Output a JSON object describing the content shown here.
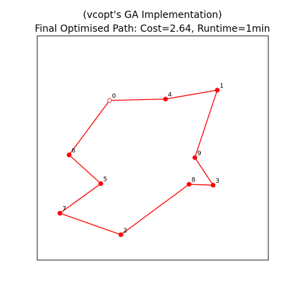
{
  "chart_data": {
    "type": "scatter",
    "title_line1": "(vcopt's GA Implementation)",
    "title_line2": "Final Optimised Path: Cost=2.64, Runtime=1min",
    "xlabel": "",
    "ylabel": "",
    "xlim": [
      0,
      1
    ],
    "ylim": [
      0,
      1
    ],
    "grid": false,
    "show_ticks": false,
    "colors": {
      "path": "#ff0000",
      "point": "#ff0000",
      "start_fill": "#ffffff",
      "frame": "#000000"
    },
    "points": [
      {
        "label": "0",
        "x": 0.313,
        "y": 0.712
      },
      {
        "label": "1",
        "x": 0.779,
        "y": 0.758
      },
      {
        "label": "2",
        "x": 0.362,
        "y": 0.113
      },
      {
        "label": "3",
        "x": 0.761,
        "y": 0.334
      },
      {
        "label": "4",
        "x": 0.555,
        "y": 0.718
      },
      {
        "label": "5",
        "x": 0.275,
        "y": 0.341
      },
      {
        "label": "6",
        "x": 0.138,
        "y": 0.469
      },
      {
        "label": "7",
        "x": 0.098,
        "y": 0.209
      },
      {
        "label": "8",
        "x": 0.657,
        "y": 0.338
      },
      {
        "label": "9",
        "x": 0.682,
        "y": 0.457
      }
    ],
    "path_order": [
      "0",
      "4",
      "1",
      "9",
      "3",
      "8",
      "2",
      "7",
      "5",
      "6",
      "0"
    ],
    "start_point": "0"
  }
}
